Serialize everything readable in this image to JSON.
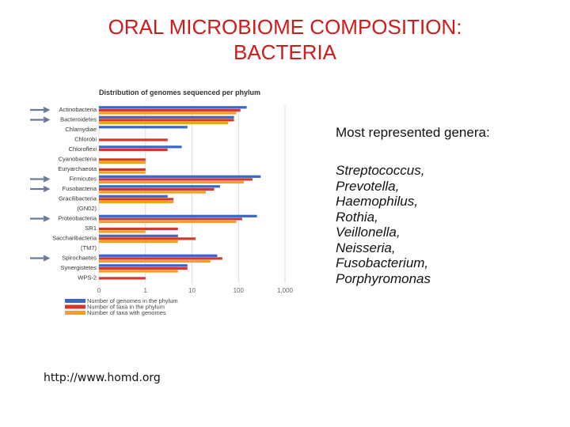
{
  "slide": {
    "title_line1": "ORAL MICROBIOME COMPOSITION:",
    "title_line2": "BACTERIA",
    "side_heading": "Most represented genera:",
    "genera": [
      "Streptococcus,",
      "Prevotella,",
      "Haemophilus,",
      "Rothia,",
      "Veillonella,",
      "Neisseria,",
      "Fusobacterium,",
      "Porphyromonas"
    ],
    "source_url": "http://www.homd.org"
  },
  "chart_data": {
    "type": "bar",
    "orientation": "horizontal",
    "title": "Distribution of genomes sequenced per phylum",
    "categories": [
      "Actinobacteria",
      "Bacteroidetes",
      "Chlamydiae",
      "Chlorobi",
      "Chloroflexi",
      "Cyanobacteria",
      "Euryarchaeota",
      "Firmicutes",
      "Fusobacteria",
      "Gracilibacteria",
      "(GN02)",
      "Proteobacteria",
      "SR1",
      "Saccharibacteria",
      "(TM7)",
      "Spirochaetes",
      "Synergistetes",
      "WPS-2"
    ],
    "arrowed_categories": [
      "Actinobacteria",
      "Bacteroidetes",
      "Firmicutes",
      "Fusobacteria",
      "Proteobacteria",
      "Spirochaetes"
    ],
    "series": [
      {
        "name": "Number of genomes in the phylum",
        "color": "#3a66c4",
        "values": [
          150,
          80,
          8,
          null,
          6,
          null,
          null,
          300,
          40,
          3,
          null,
          250,
          null,
          5,
          null,
          35,
          8,
          null
        ]
      },
      {
        "name": "Number of taxa in the phylum",
        "color": "#cf3a2a",
        "values": [
          110,
          80,
          null,
          3,
          3,
          1,
          1,
          200,
          30,
          4,
          null,
          120,
          5,
          12,
          null,
          45,
          8,
          1
        ]
      },
      {
        "name": "Number of taxa with genomes",
        "color": "#f2a01e",
        "values": [
          90,
          60,
          null,
          null,
          null,
          1,
          1,
          130,
          20,
          4,
          null,
          90,
          1,
          5,
          null,
          25,
          5,
          null
        ]
      }
    ],
    "xscale": "log",
    "xlim": [
      0.1,
      1000
    ],
    "xticks": [
      "0",
      "1",
      "10",
      "100",
      "1,000"
    ],
    "legend_position": "bottom",
    "grid": true
  }
}
